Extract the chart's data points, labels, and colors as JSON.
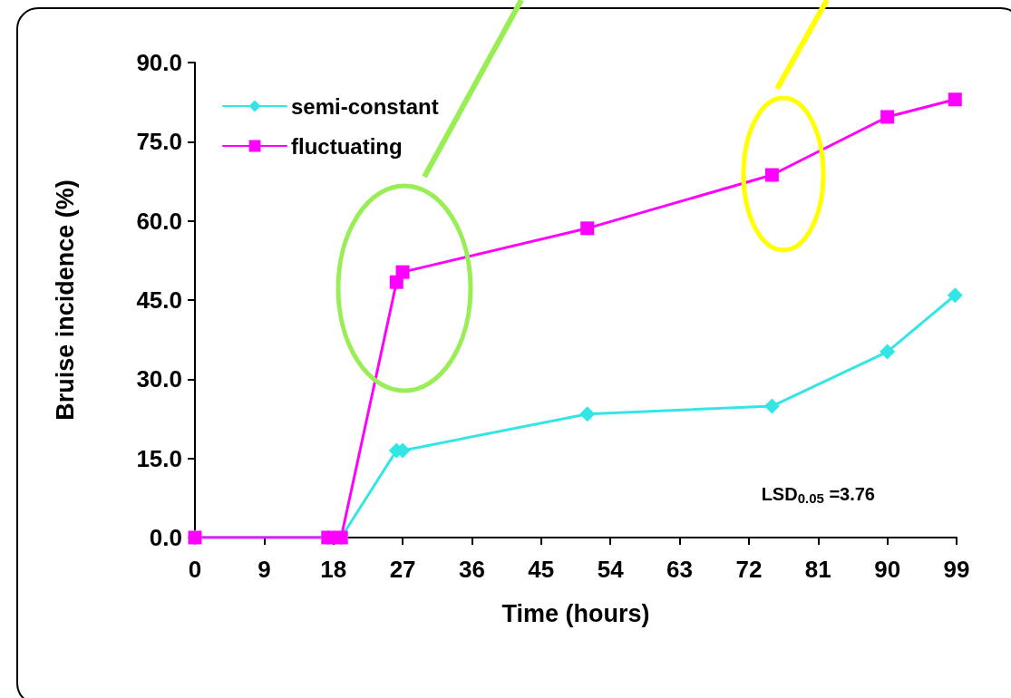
{
  "chart_data": {
    "type": "line",
    "xlabel": "Time (hours)",
    "ylabel": "Bruise incidence (%)",
    "xlim": [
      0,
      99
    ],
    "xticks": [
      0,
      9,
      18,
      27,
      36,
      45,
      54,
      63,
      72,
      81,
      90,
      99
    ],
    "ylim": [
      0,
      90
    ],
    "yticks": [
      {
        "value": 0,
        "label": "0.0"
      },
      {
        "value": 15,
        "label": "15.0"
      },
      {
        "value": 30,
        "label": "30.0"
      },
      {
        "value": 45,
        "label": "45.0"
      },
      {
        "value": 60,
        "label": "60.0"
      },
      {
        "value": 75,
        "label": "75.0"
      },
      {
        "value": 90,
        "label": "90.0"
      }
    ],
    "grid": false,
    "legend": "top left",
    "line_style": "solid",
    "annotations": [
      "LSD$_{0.05}$ =3.76"
    ],
    "series": [
      {
        "name": "semi-constant",
        "color": "#33e6e6",
        "marker": "diamond",
        "x": [
          0,
          17.3,
          19,
          26.2,
          27,
          51,
          75,
          90,
          98.8
        ],
        "values": [
          0,
          0,
          0,
          16.5,
          16.5,
          23.4,
          24.9,
          35.2,
          45.9
        ]
      },
      {
        "name": "fluctuating",
        "color": "#ff00ff",
        "marker": "square",
        "x": [
          0,
          17.3,
          19,
          26.2,
          27,
          51,
          75,
          90,
          98.8
        ],
        "values": [
          0,
          0,
          0,
          48.4,
          50.3,
          58.6,
          68.7,
          79.7,
          83
        ]
      }
    ]
  }
}
